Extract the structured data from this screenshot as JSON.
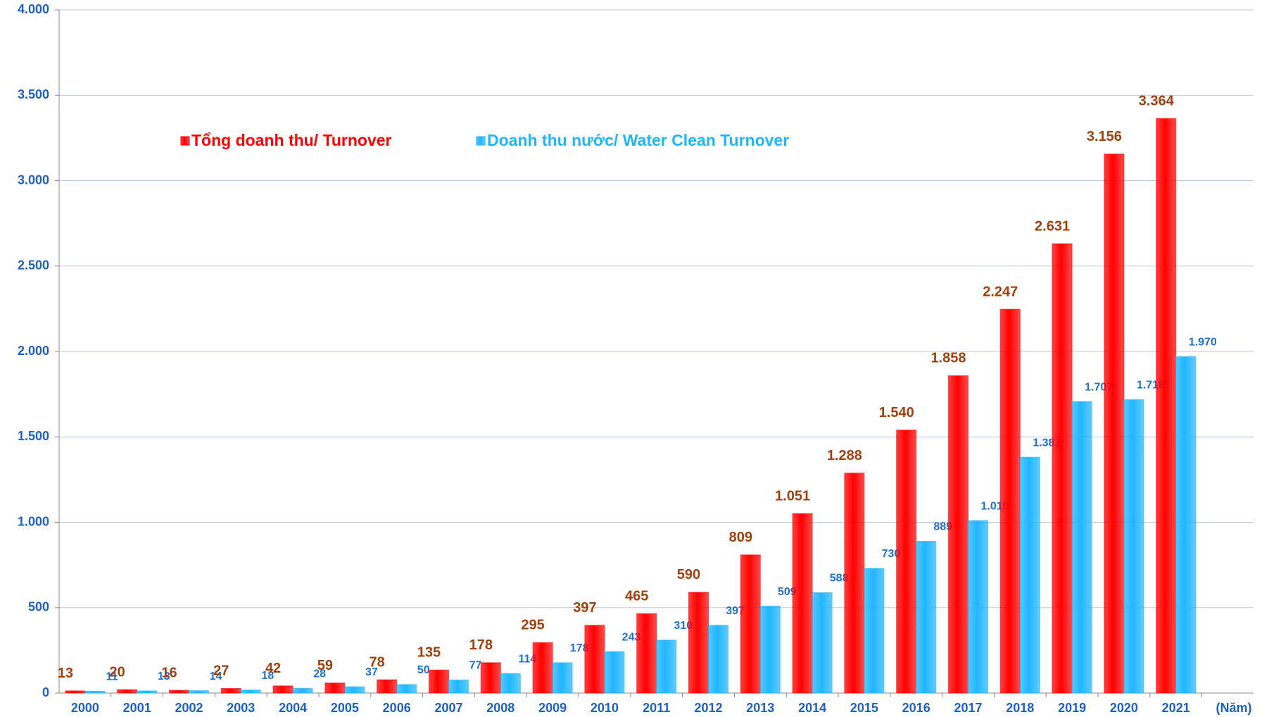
{
  "chart_data": {
    "type": "bar",
    "x_label": "(Năm)",
    "categories": [
      "2000",
      "2001",
      "2002",
      "2003",
      "2004",
      "2005",
      "2006",
      "2007",
      "2008",
      "2009",
      "2010",
      "2011",
      "2012",
      "2013",
      "2014",
      "2015",
      "2016",
      "2017",
      "2018",
      "2019",
      "2020",
      "2021"
    ],
    "series": [
      {
        "name": "Tổng doanh thu/ Turnover",
        "color": "#ff0000",
        "values": [
          13,
          20,
          16,
          27,
          42,
          59,
          78,
          135,
          178,
          295,
          397,
          465,
          590,
          809,
          1051,
          1288,
          1540,
          1858,
          2247,
          2631,
          3156,
          3364
        ],
        "value_labels": [
          "13",
          "20",
          "16",
          "27",
          "42",
          "59",
          "78",
          "135",
          "178",
          "295",
          "397",
          "465",
          "590",
          "809",
          "1.051",
          "1.288",
          "1.540",
          "1.858",
          "2.247",
          "2.631",
          "3.156",
          "3.364"
        ]
      },
      {
        "name": "Doanh thu nước/ Water Clean Turnover",
        "color": "#1fb6ff",
        "values": [
          11,
          13,
          14,
          18,
          28,
          37,
          50,
          77,
          114,
          178,
          243,
          310,
          397,
          509,
          588,
          730,
          889,
          1010,
          1381,
          1707,
          1718,
          1970
        ],
        "value_labels": [
          "11",
          "13",
          "14",
          "18",
          "28",
          "37",
          "50",
          "77",
          "114",
          "178",
          "243",
          "310",
          "397",
          "509",
          "588",
          "730",
          "889",
          "1.010",
          "1.381",
          "1.707",
          "1.718",
          "1.970"
        ]
      }
    ],
    "ylim": [
      0,
      4000
    ],
    "yticks": [
      0,
      500,
      {
        "value": 1000,
        "label": "1.000"
      },
      {
        "value": 1500,
        "label": "1.500"
      },
      {
        "value": 2000,
        "label": "2.000"
      },
      {
        "value": 2500,
        "label": "2.500"
      },
      {
        "value": 3000,
        "label": "3.000"
      },
      {
        "value": 3500,
        "label": "3.500"
      },
      {
        "value": 4000,
        "label": "4.000"
      }
    ],
    "grid": true
  }
}
